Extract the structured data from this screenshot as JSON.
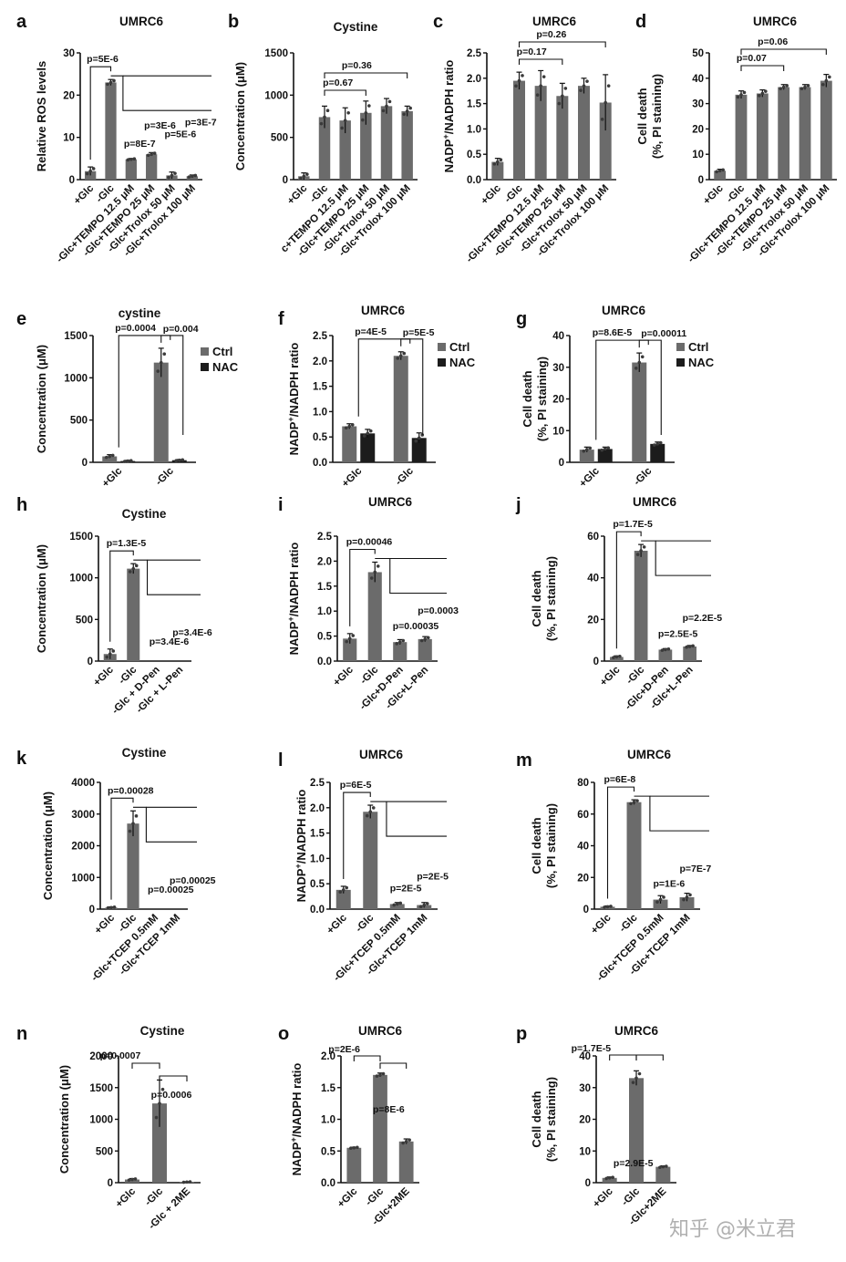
{
  "watermark": "知乎 @米立君",
  "colors": {
    "bar": "#6b6b6b",
    "nac": "#1c1c1c",
    "dot": "#3a3a3a",
    "axis": "#111111"
  },
  "chart_data": [
    {
      "id": "a",
      "panel_label": "a",
      "type": "bar",
      "title": "UMRC6",
      "ylabel": "Relative ROS levels",
      "ylim": [
        0,
        30
      ],
      "yticks": [
        0,
        10,
        20,
        30
      ],
      "categories": [
        "+Glc",
        "-Glc",
        "-Glc+TEMPO 12.5 μM",
        "-Glc+TEMPO 25 μM",
        "-Glc+Trolox 50 μM",
        "-Glc+Trolox 100 μM"
      ],
      "series": [
        {
          "values": [
            2,
            23,
            4.8,
            6,
            1,
            0.8
          ],
          "err": [
            1,
            0.7,
            0.2,
            0.4,
            0.8,
            0.3
          ]
        }
      ],
      "pvalues": [
        "p=5E-6",
        "p=8E-7",
        "p=3E-6",
        "p=5E-6",
        "p=3E-7"
      ]
    },
    {
      "id": "b",
      "panel_label": "b",
      "type": "bar",
      "title": "Cystine",
      "ylabel": "Concentration (μM)",
      "ylim": [
        0,
        1500
      ],
      "yticks": [
        0,
        500,
        1000,
        1500
      ],
      "categories": [
        "+Glc",
        "-Glc",
        "c+TEMPO 12.5 μM",
        "-Glc+TEMPO 25 μM",
        "-Glc+Trolox 50 μM",
        "-Glc+Trolox 100 μM"
      ],
      "series": [
        {
          "values": [
            40,
            740,
            700,
            790,
            870,
            810
          ],
          "err": [
            40,
            130,
            150,
            140,
            90,
            60
          ]
        }
      ],
      "pvalues": [
        "p=0.36",
        "p=0.67"
      ]
    },
    {
      "id": "c",
      "panel_label": "c",
      "type": "bar",
      "title": "UMRC6",
      "ylabel": "NADP+/NADPH ratio",
      "ylim": [
        0,
        2.5
      ],
      "yticks": [
        0.0,
        0.5,
        1.0,
        1.5,
        2.0,
        2.5
      ],
      "categories": [
        "+Glc",
        "-Glc",
        "-Glc+TEMPO 12.5 μM",
        "-Glc+TEMPO 25 μM",
        "-Glc+Trolox 50 μM",
        "-Glc+Trolox 100 μM"
      ],
      "series": [
        {
          "values": [
            0.35,
            1.95,
            1.85,
            1.65,
            1.85,
            1.52
          ],
          "err": [
            0.07,
            0.17,
            0.3,
            0.25,
            0.15,
            0.55
          ]
        }
      ],
      "pvalues": [
        "p=0.26",
        "p=0.17"
      ]
    },
    {
      "id": "d",
      "panel_label": "d",
      "type": "bar",
      "title": "UMRC6",
      "ylabel": "Cell death (%, PI staining)",
      "ylim": [
        0,
        50
      ],
      "yticks": [
        0,
        10,
        20,
        30,
        40,
        50
      ],
      "categories": [
        "+Glc",
        "-Glc",
        "-Glc+TEMPO 12.5 μM",
        "-Glc+TEMPO 25 μM",
        "-Glc+Trolox 50 μM",
        "-Glc+Trolox 100 μM"
      ],
      "series": [
        {
          "values": [
            3.5,
            33.5,
            34,
            36.5,
            36.5,
            39
          ],
          "err": [
            0.6,
            1.5,
            1.4,
            1,
            1,
            2.5
          ]
        }
      ],
      "pvalues": [
        "p=0.06",
        "p=0.07"
      ]
    },
    {
      "id": "e",
      "panel_label": "e",
      "type": "bar",
      "title": "cystine",
      "ylabel": "Concentration (μM)",
      "ylim": [
        0,
        1500
      ],
      "yticks": [
        0,
        500,
        1000,
        1500
      ],
      "categories": [
        "+Glc",
        "-Glc"
      ],
      "legend": "right",
      "series": [
        {
          "name": "Ctrl",
          "values": [
            70,
            1180
          ],
          "err": [
            20,
            170
          ]
        },
        {
          "name": "NAC",
          "values": [
            15,
            25
          ],
          "err": [
            8,
            8
          ]
        }
      ],
      "pvalues": [
        "p=0.0004",
        "p=0.004"
      ]
    },
    {
      "id": "f",
      "panel_label": "f",
      "type": "bar",
      "title": "UMRC6",
      "ylabel": "NADP+/NADPH ratio",
      "ylim": [
        0,
        2.5
      ],
      "yticks": [
        0.0,
        0.5,
        1.0,
        1.5,
        2.0,
        2.5
      ],
      "categories": [
        "+Glc",
        "-Glc"
      ],
      "legend": "right",
      "series": [
        {
          "name": "Ctrl",
          "values": [
            0.71,
            2.1
          ],
          "err": [
            0.05,
            0.08
          ]
        },
        {
          "name": "NAC",
          "values": [
            0.57,
            0.48
          ],
          "err": [
            0.08,
            0.1
          ]
        }
      ],
      "pvalues": [
        "p=4E-5",
        "p=5E-5"
      ]
    },
    {
      "id": "g",
      "panel_label": "g",
      "type": "bar",
      "title": "UMRC6",
      "ylabel": "Cell death (%, PI staining)",
      "ylim": [
        0,
        40
      ],
      "yticks": [
        0,
        10,
        20,
        30,
        40
      ],
      "categories": [
        "+Glc",
        "-Glc"
      ],
      "legend": "right",
      "series": [
        {
          "name": "Ctrl",
          "values": [
            4,
            31.5
          ],
          "err": [
            0.8,
            3
          ]
        },
        {
          "name": "NAC",
          "values": [
            4.2,
            5.8
          ],
          "err": [
            0.6,
            0.6
          ]
        }
      ],
      "pvalues": [
        "p=8.6E-5",
        "p=0.00011"
      ]
    },
    {
      "id": "h",
      "panel_label": "h",
      "type": "bar",
      "title": "Cystine",
      "ylabel": "Concentration (μM)",
      "ylim": [
        0,
        1500
      ],
      "yticks": [
        0,
        500,
        1000,
        1500
      ],
      "categories": [
        "+Glc",
        "-Glc",
        "-Glc + D-Pen",
        "-Glc + L-Pen"
      ],
      "series": [
        {
          "values": [
            85,
            1110,
            0,
            0
          ],
          "err": [
            60,
            60,
            0,
            0
          ]
        }
      ],
      "pvalues": [
        "p=1.3E-5",
        "p=3.4E-6",
        "p=3.4E-6"
      ]
    },
    {
      "id": "i",
      "panel_label": "i",
      "type": "bar",
      "title": "UMRC6",
      "ylabel": "NADP+/NADPH ratio",
      "ylim": [
        0,
        2.5
      ],
      "yticks": [
        0.0,
        0.5,
        1.0,
        1.5,
        2.0,
        2.5
      ],
      "categories": [
        "+Glc",
        "-Glc",
        "-Glc+D-Pen",
        "-Glc+L-Pen"
      ],
      "series": [
        {
          "values": [
            0.45,
            1.78,
            0.38,
            0.44
          ],
          "err": [
            0.1,
            0.2,
            0.05,
            0.05
          ]
        }
      ],
      "pvalues": [
        "p=0.00046",
        "p=0.00035",
        "p=0.0003"
      ]
    },
    {
      "id": "j",
      "panel_label": "j",
      "type": "bar",
      "title": "UMRC6",
      "ylabel": "Cell death (%, PI staining)",
      "ylim": [
        0,
        60
      ],
      "yticks": [
        0,
        20,
        40,
        60
      ],
      "categories": [
        "+Glc",
        "-Glc",
        "-Glc+D-Pen",
        "-Glc+L-Pen"
      ],
      "series": [
        {
          "values": [
            2,
            53,
            5.5,
            7
          ],
          "err": [
            0.5,
            3,
            0.5,
            0.5
          ]
        }
      ],
      "pvalues": [
        "p=1.7E-5",
        "p=2.5E-5",
        "p=2.2E-5"
      ]
    },
    {
      "id": "k",
      "panel_label": "k",
      "type": "bar",
      "title": "Cystine",
      "ylabel": "Concentration (μM)",
      "ylim": [
        0,
        4000
      ],
      "yticks": [
        0,
        1000,
        2000,
        3000,
        4000
      ],
      "categories": [
        "+Glc",
        "-Glc",
        "-Glc+TCEP 0.5mM",
        "-Glc+TCEP 1mM"
      ],
      "series": [
        {
          "values": [
            50,
            2700,
            0,
            0
          ],
          "err": [
            20,
            400,
            0,
            0
          ]
        }
      ],
      "pvalues": [
        "p=0.00028",
        "p=0.00025",
        "p=0.00025"
      ]
    },
    {
      "id": "l",
      "panel_label": "l",
      "type": "bar",
      "title": "UMRC6",
      "ylabel": "NADP+/NADPH ratio",
      "ylim": [
        0,
        2.5
      ],
      "yticks": [
        0.0,
        0.5,
        1.0,
        1.5,
        2.0,
        2.5
      ],
      "categories": [
        "+Glc",
        "-Glc",
        "-Glc+TCEP 0.5mM",
        "-Glc+TCEP 1mM"
      ],
      "series": [
        {
          "values": [
            0.38,
            1.92,
            0.1,
            0.08
          ],
          "err": [
            0.07,
            0.13,
            0.03,
            0.05
          ]
        }
      ],
      "pvalues": [
        "p=6E-5",
        "p=2E-5",
        "p=2E-5"
      ]
    },
    {
      "id": "m",
      "panel_label": "m",
      "type": "bar",
      "title": "UMRC6",
      "ylabel": "Cell death (%, PI staining)",
      "ylim": [
        0,
        80
      ],
      "yticks": [
        0,
        20,
        40,
        60,
        80
      ],
      "categories": [
        "+Glc",
        "-Glc",
        "-Glc+TCEP 0.5mM",
        "-Glc+TCEP 1mM"
      ],
      "series": [
        {
          "values": [
            1.5,
            67.5,
            6,
            7.5
          ],
          "err": [
            0.5,
            1.5,
            2.5,
            2.5
          ]
        }
      ],
      "pvalues": [
        "p=6E-8",
        "p=1E-6",
        "p=7E-7"
      ]
    },
    {
      "id": "n",
      "panel_label": "n",
      "type": "bar",
      "title": "Cystine",
      "ylabel": "Concentration (μM)",
      "ylim": [
        0,
        2000
      ],
      "yticks": [
        0,
        500,
        1000,
        1500,
        2000
      ],
      "categories": [
        "+Glc",
        "-Glc",
        "-Glc + 2ME"
      ],
      "series": [
        {
          "values": [
            50,
            1250,
            10
          ],
          "err": [
            15,
            370,
            5
          ]
        }
      ],
      "pvalues": [
        "p=0.0007",
        "p=0.0006"
      ]
    },
    {
      "id": "o",
      "panel_label": "o",
      "type": "bar",
      "title": "UMRC6",
      "ylabel": "NADP+/NADPH ratio",
      "ylim": [
        0,
        2.0
      ],
      "yticks": [
        0.0,
        0.5,
        1.0,
        1.5,
        2.0
      ],
      "categories": [
        "+Glc",
        "-Glc",
        "-Glc+2ME"
      ],
      "series": [
        {
          "values": [
            0.55,
            1.7,
            0.65
          ],
          "err": [
            0.01,
            0.03,
            0.04
          ]
        }
      ],
      "pvalues": [
        "p=2E-6",
        "p=8E-6"
      ]
    },
    {
      "id": "p",
      "panel_label": "p",
      "type": "bar",
      "title": "UMRC6",
      "ylabel": "Cell death (%, PI staining)",
      "ylim": [
        0,
        40
      ],
      "yticks": [
        0,
        10,
        20,
        30,
        40
      ],
      "categories": [
        "+Glc",
        "-Glc",
        "-Glc+2ME"
      ],
      "series": [
        {
          "values": [
            1.5,
            33,
            5
          ],
          "err": [
            0.3,
            2.3,
            0.3
          ]
        }
      ],
      "pvalues": [
        "p=1.7E-5",
        "p=2.9E-5"
      ]
    }
  ]
}
